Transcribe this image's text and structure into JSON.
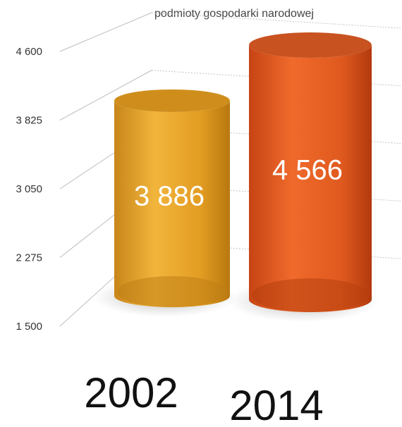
{
  "chart_data": {
    "type": "bar",
    "style": "3d-cylinder",
    "title": "podmioty gospodarki narodowej",
    "categories": [
      "2002",
      "2014"
    ],
    "values": [
      3886,
      4566
    ],
    "value_labels": [
      "3 886",
      "4 566"
    ],
    "colors": [
      "#e8a524",
      "#e05a1f"
    ],
    "yticks": [
      "4 600",
      "3 825",
      "3 050",
      "2 275",
      "1 500"
    ],
    "ytick_values": [
      4600,
      3825,
      3050,
      2275,
      1500
    ],
    "ylim": [
      1500,
      4600
    ],
    "grid": true,
    "xlabel": "",
    "ylabel": ""
  }
}
